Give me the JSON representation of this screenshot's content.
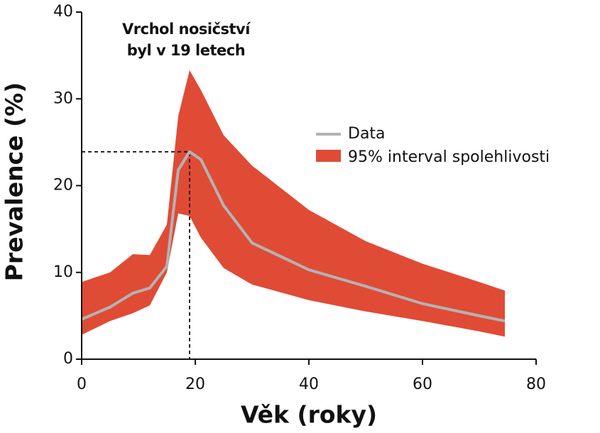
{
  "chart_data": {
    "type": "line",
    "annotation": [
      "Vrchol nosičství",
      "byl v 19 letech"
    ],
    "x_label": "Věk (roky)",
    "y_label": "Prevalence (%)",
    "x": [
      0,
      5,
      9,
      12,
      15,
      17,
      19,
      21,
      25,
      30,
      40,
      50,
      60,
      70,
      74.5
    ],
    "series": [
      {
        "name": "Data",
        "color": "#b3b3b3",
        "values": [
          4.6,
          6.0,
          7.6,
          8.2,
          10.7,
          21.8,
          23.9,
          23,
          17.7,
          13.4,
          10.3,
          8.4,
          6.4,
          5,
          4.4
        ]
      },
      {
        "name": "95% interval spolehlivosti",
        "color": "#e04b35",
        "lower": [
          2.8,
          4.4,
          5.3,
          6.2,
          10,
          16.8,
          16.5,
          14,
          10.5,
          8.6,
          6.8,
          5.5,
          4.4,
          3.2,
          2.6
        ],
        "upper": [
          8.9,
          10,
          12.1,
          12,
          15.5,
          28,
          33.3,
          31,
          25.8,
          22.3,
          17.2,
          13.6,
          11,
          8.9,
          7.9
        ]
      }
    ],
    "peak": {
      "x": 19,
      "y": 23.9
    },
    "xlim": [
      0,
      80
    ],
    "xticks": [
      0,
      20,
      40,
      60,
      80
    ],
    "ylim": [
      0,
      40
    ],
    "yticks": [
      0,
      10,
      20,
      30,
      40
    ],
    "grid": false
  }
}
